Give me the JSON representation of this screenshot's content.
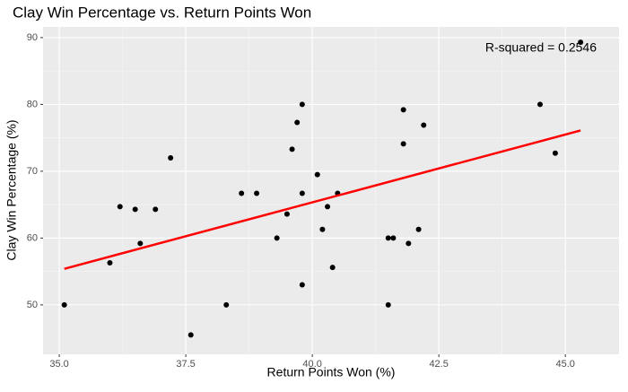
{
  "chart_data": {
    "type": "scatter",
    "title": "Clay Win Percentage vs. Return Points Won",
    "x_label": "Return Points Won (%)",
    "y_label": "Clay Win Percentage (%)",
    "annotation": "R-squared = 0.2546",
    "series": [
      {
        "color": "#000000",
        "x": [
          35.1,
          36.0,
          36.2,
          36.5,
          36.6,
          36.9,
          37.2,
          37.6,
          38.3,
          38.6,
          38.9,
          39.3,
          39.5,
          39.6,
          39.7,
          39.8,
          39.8,
          39.8,
          40.1,
          40.2,
          40.3,
          40.4,
          40.5,
          41.5,
          41.5,
          41.6,
          41.8,
          41.8,
          41.9,
          42.1,
          42.2,
          44.5,
          44.8,
          45.3
        ],
        "values": [
          50,
          56.3,
          64.7,
          64.3,
          59.2,
          64.3,
          72,
          45.5,
          50,
          66.7,
          66.7,
          60,
          63.6,
          73.3,
          77.3,
          80,
          66.7,
          53,
          69.5,
          61.3,
          64.7,
          55.6,
          66.7,
          60,
          50,
          60,
          79.2,
          74.1,
          59.2,
          61.3,
          76.9,
          80,
          72.7,
          89.3
        ]
      }
    ],
    "fit": {
      "color": "#ff0000",
      "x": [
        35.1,
        45.3
      ],
      "y": [
        55.4,
        76.1
      ]
    },
    "xlim": [
      34.68,
      46.06
    ],
    "ylim": [
      42.6,
      91.6
    ],
    "xticks": [
      {
        "value": 35,
        "label": "35.0"
      },
      {
        "value": 37.5,
        "label": "37.5"
      },
      {
        "value": 40,
        "label": "40.0"
      },
      {
        "value": 42.5,
        "label": "42.5"
      },
      {
        "value": 45,
        "label": "45.0"
      }
    ],
    "yticks": [
      50,
      60,
      70,
      80,
      90
    ],
    "grid": true
  }
}
